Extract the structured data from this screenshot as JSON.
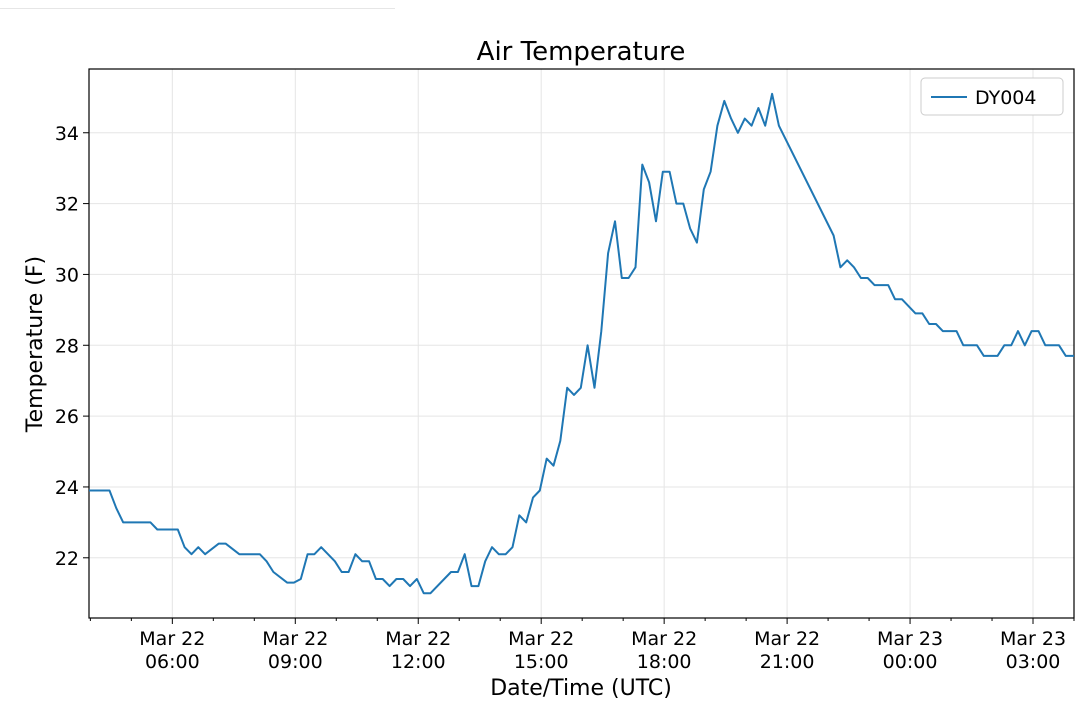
{
  "chart_data": {
    "type": "line",
    "title": "Air Temperature",
    "xlabel": "Date/Time (UTC)",
    "ylabel": "Temperature (F)",
    "x_unit": "hours",
    "xlim": [
      "2019-03-22 03:58",
      "2019-03-23 04:00"
    ],
    "ylim": [
      20.3,
      35.8
    ],
    "grid": true,
    "legend_position": "top-right",
    "x_ticks": [
      {
        "date": "Mar 22",
        "time": "06:00"
      },
      {
        "date": "Mar 22",
        "time": "09:00"
      },
      {
        "date": "Mar 22",
        "time": "12:00"
      },
      {
        "date": "Mar 22",
        "time": "15:00"
      },
      {
        "date": "Mar 22",
        "time": "18:00"
      },
      {
        "date": "Mar 22",
        "time": "21:00"
      },
      {
        "date": "Mar 23",
        "time": "00:00"
      },
      {
        "date": "Mar 23",
        "time": "03:00"
      }
    ],
    "y_ticks": [
      22,
      24,
      26,
      28,
      30,
      32,
      34
    ],
    "series": [
      {
        "name": "DY004",
        "color": "#1f77b4",
        "points": [
          [
            "03:58",
            23.9
          ],
          [
            "04:28",
            23.9
          ],
          [
            "04:38",
            23.4
          ],
          [
            "04:48",
            23.0
          ],
          [
            "05:28",
            23.0
          ],
          [
            "05:38",
            22.8
          ],
          [
            "06:08",
            22.8
          ],
          [
            "06:18",
            22.3
          ],
          [
            "06:28",
            22.1
          ],
          [
            "06:38",
            22.3
          ],
          [
            "06:48",
            22.1
          ],
          [
            "07:08",
            22.4
          ],
          [
            "07:18",
            22.4
          ],
          [
            "07:38",
            22.1
          ],
          [
            "08:08",
            22.1
          ],
          [
            "08:18",
            21.9
          ],
          [
            "08:28",
            21.6
          ],
          [
            "08:48",
            21.3
          ],
          [
            "08:58",
            21.3
          ],
          [
            "09:08",
            21.4
          ],
          [
            "09:18",
            22.1
          ],
          [
            "09:28",
            22.1
          ],
          [
            "09:38",
            22.3
          ],
          [
            "09:58",
            21.9
          ],
          [
            "10:08",
            21.6
          ],
          [
            "10:18",
            21.6
          ],
          [
            "10:28",
            22.1
          ],
          [
            "10:38",
            21.9
          ],
          [
            "10:48",
            21.9
          ],
          [
            "10:58",
            21.4
          ],
          [
            "11:08",
            21.4
          ],
          [
            "11:18",
            21.2
          ],
          [
            "11:28",
            21.4
          ],
          [
            "11:38",
            21.4
          ],
          [
            "11:48",
            21.2
          ],
          [
            "11:58",
            21.4
          ],
          [
            "12:08",
            21.0
          ],
          [
            "12:18",
            21.0
          ],
          [
            "12:48",
            21.6
          ],
          [
            "12:58",
            21.6
          ],
          [
            "13:08",
            22.1
          ],
          [
            "13:18",
            21.2
          ],
          [
            "13:28",
            21.2
          ],
          [
            "13:38",
            21.9
          ],
          [
            "13:48",
            22.3
          ],
          [
            "13:58",
            22.1
          ],
          [
            "14:08",
            22.1
          ],
          [
            "14:18",
            22.3
          ],
          [
            "14:28",
            23.2
          ],
          [
            "14:38",
            23.0
          ],
          [
            "14:48",
            23.7
          ],
          [
            "14:58",
            23.9
          ],
          [
            "15:08",
            24.8
          ],
          [
            "15:18",
            24.6
          ],
          [
            "15:28",
            25.3
          ],
          [
            "15:38",
            26.8
          ],
          [
            "15:48",
            26.6
          ],
          [
            "15:58",
            26.8
          ],
          [
            "16:08",
            28.0
          ],
          [
            "16:18",
            26.8
          ],
          [
            "16:28",
            28.4
          ],
          [
            "16:38",
            30.6
          ],
          [
            "16:48",
            31.5
          ],
          [
            "16:58",
            29.9
          ],
          [
            "17:08",
            29.9
          ],
          [
            "17:18",
            30.2
          ],
          [
            "17:28",
            33.1
          ],
          [
            "17:38",
            32.6
          ],
          [
            "17:48",
            31.5
          ],
          [
            "17:58",
            32.9
          ],
          [
            "18:08",
            32.9
          ],
          [
            "18:18",
            32.0
          ],
          [
            "18:28",
            32.0
          ],
          [
            "18:38",
            31.3
          ],
          [
            "18:48",
            30.9
          ],
          [
            "18:58",
            32.4
          ],
          [
            "19:08",
            32.9
          ],
          [
            "19:18",
            34.2
          ],
          [
            "19:28",
            34.9
          ],
          [
            "19:38",
            34.4
          ],
          [
            "19:48",
            34.0
          ],
          [
            "19:58",
            34.4
          ],
          [
            "20:08",
            34.2
          ],
          [
            "20:18",
            34.7
          ],
          [
            "20:28",
            34.2
          ],
          [
            "20:38",
            35.1
          ],
          [
            "20:48",
            34.2
          ],
          [
            "22:08",
            31.1
          ],
          [
            "22:18",
            30.2
          ],
          [
            "22:28",
            30.4
          ],
          [
            "22:38",
            30.2
          ],
          [
            "22:48",
            29.9
          ],
          [
            "22:58",
            29.9
          ],
          [
            "23:08",
            29.7
          ],
          [
            "23:28",
            29.7
          ],
          [
            "23:38",
            29.3
          ],
          [
            "23:48",
            29.3
          ],
          [
            "24:08",
            28.9
          ],
          [
            "24:18",
            28.9
          ],
          [
            "24:28",
            28.6
          ],
          [
            "24:38",
            28.6
          ],
          [
            "24:48",
            28.4
          ],
          [
            "25:08",
            28.4
          ],
          [
            "25:18",
            28.0
          ],
          [
            "25:38",
            28.0
          ],
          [
            "25:48",
            27.7
          ],
          [
            "26:08",
            27.7
          ],
          [
            "26:18",
            28.0
          ],
          [
            "26:28",
            28.0
          ],
          [
            "26:38",
            28.4
          ],
          [
            "26:48",
            28.0
          ],
          [
            "26:58",
            28.4
          ],
          [
            "27:08",
            28.4
          ],
          [
            "27:18",
            28.0
          ],
          [
            "27:38",
            28.0
          ],
          [
            "27:48",
            27.7
          ],
          [
            "28:00",
            27.7
          ]
        ]
      }
    ]
  }
}
